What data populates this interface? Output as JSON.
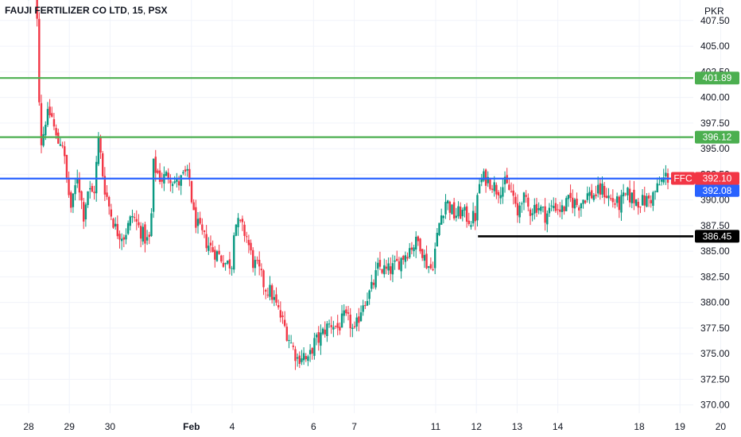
{
  "header": {
    "symbol_title": "FAUJI FERTILIZER CO LTD",
    "interval": "15",
    "exchange": "PSX",
    "currency": "PKR"
  },
  "chart_data": {
    "type": "candlestick",
    "y_ticks": [
      "407.50",
      "405.00",
      "402.50",
      "400.00",
      "397.50",
      "395.00",
      "392.50",
      "390.00",
      "387.50",
      "385.00",
      "382.50",
      "380.00",
      "377.50",
      "375.00",
      "372.50",
      "370.00"
    ],
    "ylim": [
      369.2,
      409.5
    ],
    "x_ticks": [
      {
        "label": "28",
        "session": 0,
        "bold": false
      },
      {
        "label": "29",
        "session": 1,
        "bold": false
      },
      {
        "label": "30",
        "session": 2,
        "bold": false
      },
      {
        "label": "Feb",
        "session": 4,
        "bold": true
      },
      {
        "label": "4",
        "session": 5,
        "bold": false
      },
      {
        "label": "6",
        "session": 7,
        "bold": false
      },
      {
        "label": "7",
        "session": 8,
        "bold": false
      },
      {
        "label": "11",
        "session": 10,
        "bold": false
      },
      {
        "label": "12",
        "session": 11,
        "bold": false
      },
      {
        "label": "13",
        "session": 12,
        "bold": false
      },
      {
        "label": "14",
        "session": 13,
        "bold": false
      },
      {
        "label": "18",
        "session": 15,
        "bold": false
      },
      {
        "label": "19",
        "session": 16,
        "bold": false
      },
      {
        "label": "20",
        "session": 17,
        "bold": false
      }
    ],
    "path_close": [
      [
        0,
        410.5
      ],
      [
        0.2,
        409.5
      ],
      [
        0.25,
        401.0
      ],
      [
        0.32,
        395.0
      ],
      [
        0.4,
        397.8
      ],
      [
        0.55,
        398.5
      ],
      [
        0.7,
        395.5
      ],
      [
        0.82,
        396.0
      ],
      [
        0.95,
        391.5
      ],
      [
        1.05,
        389.0
      ],
      [
        1.2,
        392.5
      ],
      [
        1.35,
        388.5
      ],
      [
        1.45,
        391.0
      ],
      [
        1.6,
        390.5
      ],
      [
        1.72,
        396.0
      ],
      [
        1.85,
        391.5
      ],
      [
        2.0,
        389.0
      ],
      [
        2.15,
        387.0
      ],
      [
        2.35,
        386.5
      ],
      [
        2.55,
        388.5
      ],
      [
        2.75,
        387.0
      ],
      [
        2.9,
        386.0
      ],
      [
        3.0,
        386.2
      ],
      [
        3.05,
        393.5
      ],
      [
        3.25,
        392.0
      ],
      [
        3.45,
        392.5
      ],
      [
        3.65,
        391.5
      ],
      [
        3.85,
        392.5
      ],
      [
        3.95,
        392.0
      ],
      [
        4.05,
        388.5
      ],
      [
        4.2,
        387.0
      ],
      [
        4.35,
        386.0
      ],
      [
        4.5,
        385.2
      ],
      [
        4.7,
        384.5
      ],
      [
        4.85,
        383.8
      ],
      [
        5.0,
        383.8
      ],
      [
        5.05,
        387.8
      ],
      [
        5.2,
        387.5
      ],
      [
        5.35,
        386.5
      ],
      [
        5.5,
        384.0
      ],
      [
        5.65,
        383.2
      ],
      [
        5.8,
        381.5
      ],
      [
        5.95,
        381.0
      ],
      [
        6.1,
        379.5
      ],
      [
        6.25,
        378.0
      ],
      [
        6.45,
        376.0
      ],
      [
        6.6,
        374.5
      ],
      [
        6.75,
        375.0
      ],
      [
        6.85,
        374.0
      ],
      [
        7.0,
        376.0
      ],
      [
        7.15,
        376.5
      ],
      [
        7.3,
        377.5
      ],
      [
        7.45,
        378.0
      ],
      [
        7.6,
        377.5
      ],
      [
        7.75,
        378.5
      ],
      [
        7.9,
        378.0
      ],
      [
        8.0,
        376.8
      ],
      [
        8.2,
        380.0
      ],
      [
        8.4,
        381.0
      ],
      [
        8.6,
        383.5
      ],
      [
        8.8,
        383.0
      ],
      [
        9.0,
        383.5
      ],
      [
        9.2,
        384.5
      ],
      [
        9.4,
        385.5
      ],
      [
        9.6,
        386.0
      ],
      [
        9.75,
        384.0
      ],
      [
        9.9,
        383.2
      ],
      [
        10.0,
        385.5
      ],
      [
        10.1,
        388.0
      ],
      [
        10.25,
        390.0
      ],
      [
        10.45,
        388.5
      ],
      [
        10.65,
        388.8
      ],
      [
        10.85,
        388.0
      ],
      [
        11.0,
        388.5
      ],
      [
        11.05,
        391.5
      ],
      [
        11.2,
        392.2
      ],
      [
        11.35,
        391.8
      ],
      [
        11.5,
        391.0
      ],
      [
        11.7,
        391.5
      ],
      [
        11.9,
        390.5
      ],
      [
        12.0,
        388.0
      ],
      [
        12.1,
        390.5
      ],
      [
        12.3,
        389.0
      ],
      [
        12.5,
        389.5
      ],
      [
        12.7,
        388.5
      ],
      [
        12.9,
        389.5
      ],
      [
        13.1,
        389.0
      ],
      [
        13.3,
        390.0
      ],
      [
        13.5,
        389.5
      ],
      [
        13.7,
        390.5
      ],
      [
        13.9,
        390.5
      ],
      [
        14.1,
        391.0
      ],
      [
        14.3,
        390.0
      ],
      [
        14.5,
        389.5
      ],
      [
        14.7,
        390.5
      ],
      [
        14.9,
        390.0
      ],
      [
        15.1,
        389.8
      ],
      [
        15.3,
        390.2
      ],
      [
        15.5,
        391.5
      ],
      [
        15.65,
        392.3
      ],
      [
        15.75,
        392.1
      ]
    ],
    "horizontal_levels": [
      {
        "price": 401.89,
        "label": "401.89",
        "color": "#4caf50"
      },
      {
        "price": 396.12,
        "label": "396.12",
        "color": "#4caf50"
      },
      {
        "price": 392.08,
        "label": "392.08",
        "color": "#2962ff"
      }
    ],
    "support_segment": {
      "price": 386.45,
      "label": "386.45",
      "color": "#000000",
      "from_session": 11.0
    },
    "last_price": {
      "symbol": "FFC",
      "value": "392.10",
      "price": 392.1,
      "color": "#f23645"
    },
    "colors": {
      "up": "#089981",
      "down": "#f23645",
      "grid": "#f0f3fa"
    }
  }
}
